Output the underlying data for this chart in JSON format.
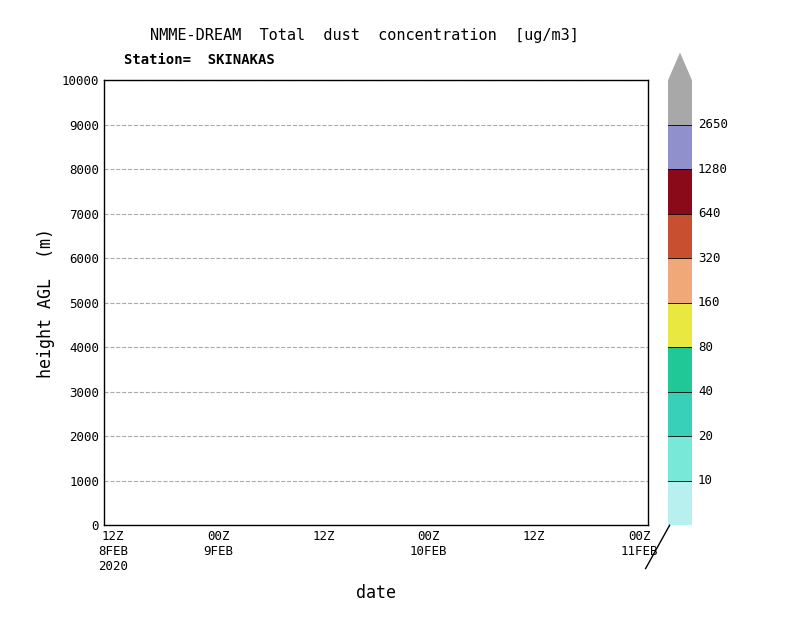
{
  "title": "NMME-DREAM  Total  dust  concentration  [ug/m3]",
  "subtitle": "Station=  SKINAKAS",
  "xlabel": "date",
  "ylabel": "height AGL  (m)",
  "xlim_labels": [
    "12Z\n8FEB\n2020",
    "00Z\n9FEB",
    "12Z",
    "00Z\n10FEB",
    "12Z",
    "00Z\n11FEB"
  ],
  "ylim": [
    0,
    10000
  ],
  "yticks": [
    0,
    1000,
    2000,
    3000,
    4000,
    5000,
    6000,
    7000,
    8000,
    9000,
    10000
  ],
  "colorbar_levels": [
    10,
    20,
    40,
    80,
    160,
    320,
    640,
    1280,
    2650
  ],
  "cb_band_colors": [
    "#b8f0f0",
    "#78e8d8",
    "#38d0b8",
    "#20c898",
    "#e8e840",
    "#f0a878",
    "#c85030",
    "#8b0a1a",
    "#9090cc",
    "#a8a8a8"
  ],
  "background_color": "#ffffff",
  "font_family": "monospace",
  "title_fontsize": 11,
  "subtitle_fontsize": 10,
  "axis_label_fontsize": 12,
  "tick_fontsize": 9,
  "colorbar_label_fontsize": 9
}
